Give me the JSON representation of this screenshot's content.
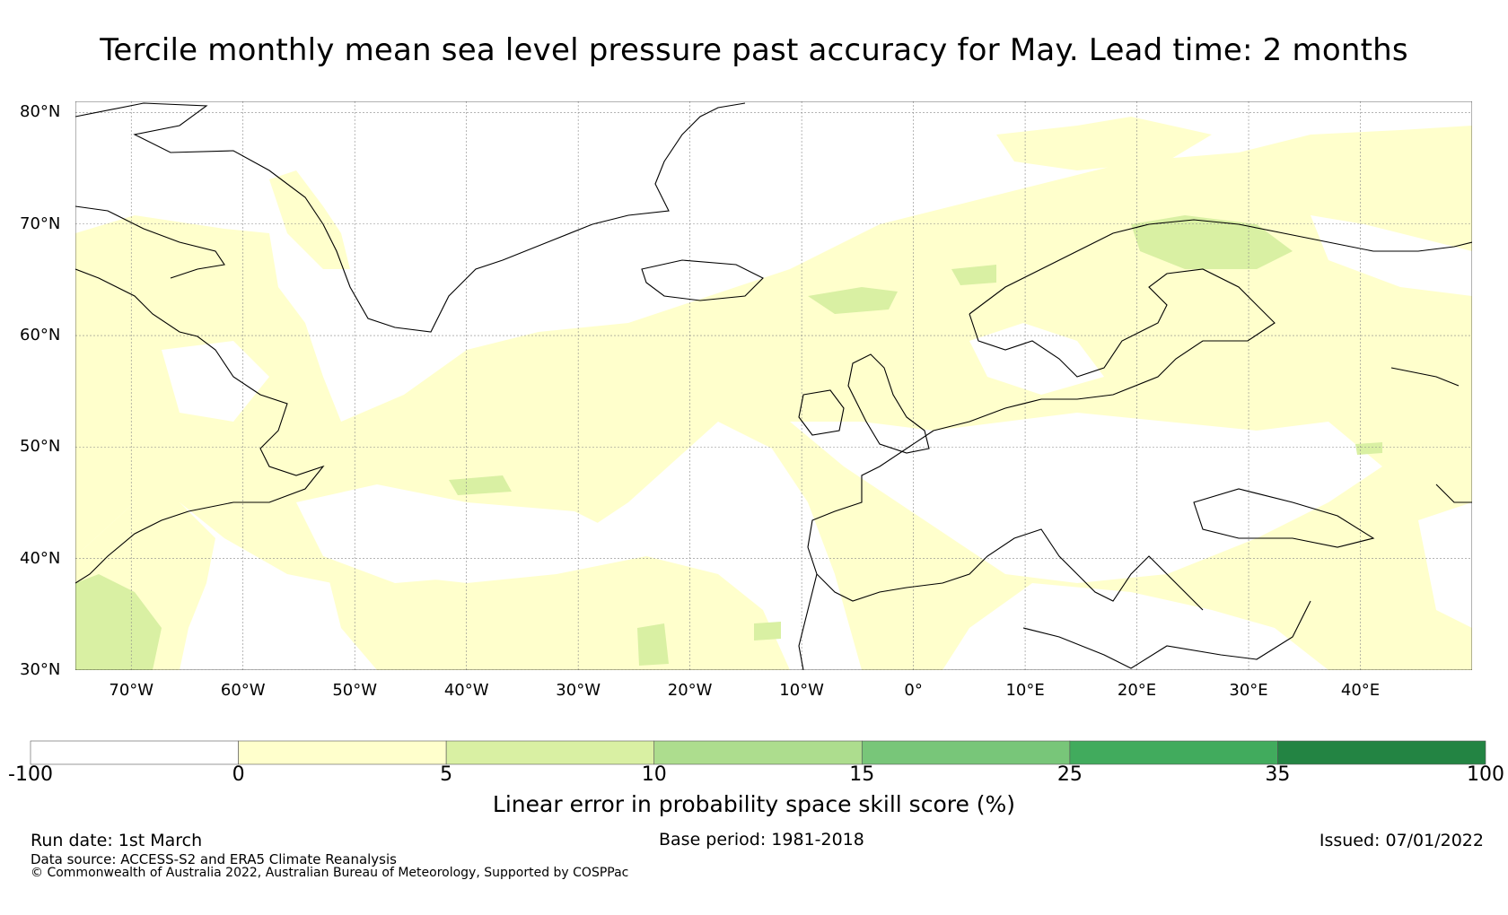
{
  "title": "Tercile monthly mean sea level pressure past accuracy for May. Lead time: 2 months",
  "map": {
    "lat_labels": [
      "80°N",
      "70°N",
      "60°N",
      "50°N",
      "40°N",
      "30°N"
    ],
    "lon_labels": [
      "70°W",
      "60°W",
      "50°W",
      "40°W",
      "30°W",
      "20°W",
      "10°W",
      "0°",
      "10°E",
      "20°E",
      "30°E",
      "40°E"
    ],
    "lat_range": [
      30,
      81
    ],
    "lon_range": [
      -75,
      50
    ],
    "gridlines": true,
    "skill_regions": [
      {
        "level": "0-5",
        "description": "widespread light positive skill over Europe and North Atlantic"
      },
      {
        "level": "5-10",
        "description": "patches over Scandinavia, western Atlantic and near Newfoundland"
      }
    ]
  },
  "colorbar": {
    "ticks": [
      "-100",
      "0",
      "5",
      "10",
      "15",
      "25",
      "35",
      "100"
    ],
    "colors": [
      "#ffffff",
      "#ffffcc",
      "#d9f0a3",
      "#addd8e",
      "#78c679",
      "#41ab5d",
      "#238443"
    ],
    "title": "Linear error in probability space skill score (%)"
  },
  "footer": {
    "run_date": "Run date: 1st March",
    "base_period": "Base period: 1981-2018",
    "issued": "Issued: 07/01/2022",
    "data_source": "Data source: ACCESS-S2 and ERA5 Climate Reanalysis",
    "copyright": "© Commonwealth of Australia 2022, Australian Bureau of Meteorology, Supported by COSPPac"
  }
}
